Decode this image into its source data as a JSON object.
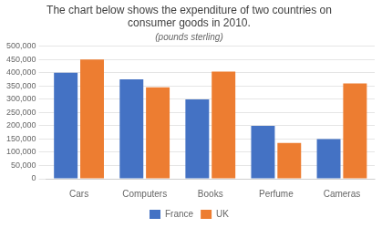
{
  "chart_data": {
    "type": "bar",
    "title": "The chart below shows the expenditure of two countries on\nconsumer goods in 2010.",
    "subtitle": "(pounds sterling)",
    "categories": [
      "Cars",
      "Computers",
      "Books",
      "Perfume",
      "Cameras"
    ],
    "series": [
      {
        "name": "France",
        "color": "#4472c4",
        "values": [
          400000,
          375000,
          300000,
          200000,
          150000
        ]
      },
      {
        "name": "UK",
        "color": "#ed7d31",
        "values": [
          450000,
          345000,
          405000,
          135000,
          360000
        ]
      }
    ],
    "ylim": [
      0,
      500000
    ],
    "yticks": [
      0,
      {
        "value": 50000,
        "label": "50,000"
      },
      {
        "value": 100000,
        "label": "100,000"
      },
      {
        "value": 150000,
        "label": "150,000"
      },
      {
        "value": 200000,
        "label": "200,000"
      },
      {
        "value": 250000,
        "label": "250,000"
      },
      {
        "value": 300000,
        "label": "300,000"
      },
      {
        "value": 350000,
        "label": "350,000"
      },
      {
        "value": 400000,
        "label": "400,000"
      },
      {
        "value": 450000,
        "label": "450,000"
      },
      {
        "value": 500000,
        "label": "500,000"
      }
    ],
    "grid": true,
    "legend": "bottom"
  }
}
